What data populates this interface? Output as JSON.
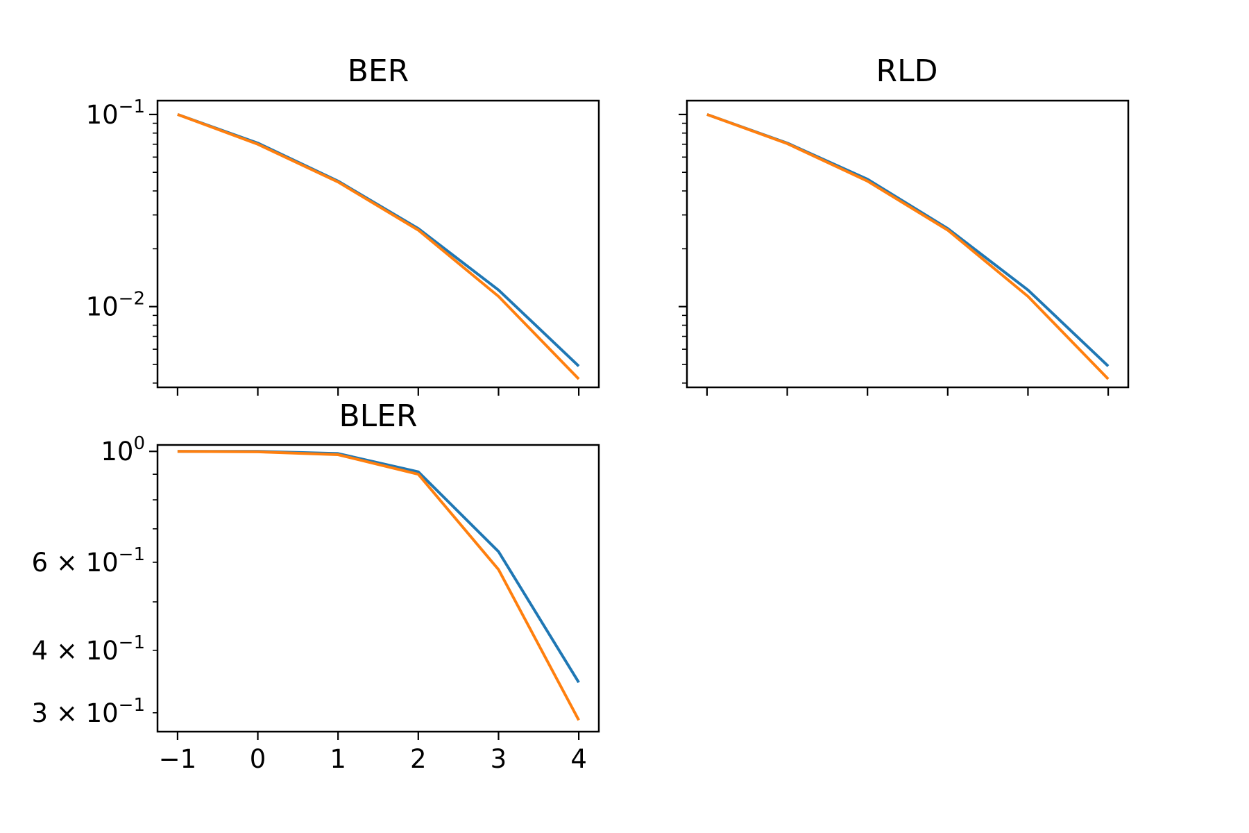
{
  "colors": {
    "series_1": "#1f77b4",
    "series_2": "#ff7f0e"
  },
  "chart_data": [
    {
      "type": "line",
      "title": "BER",
      "xlabel": "",
      "ylabel": "",
      "x": [
        -1,
        0,
        1,
        2,
        3,
        4
      ],
      "y_scale": "log",
      "ylim": [
        0.0038,
        0.118
      ],
      "xlim": [
        -1.25,
        4.25
      ],
      "y_ticks": [
        {
          "value": 0.1,
          "label": "10",
          "exp": "−1"
        },
        {
          "value": 0.01,
          "label": "10",
          "exp": "−2"
        }
      ],
      "x_tick_labels_shown": false,
      "series": [
        {
          "values": [
            0.1,
            0.071,
            0.045,
            0.0255,
            0.0122,
            0.0049
          ]
        },
        {
          "values": [
            0.1,
            0.07,
            0.0445,
            0.025,
            0.0113,
            0.0042
          ]
        }
      ]
    },
    {
      "type": "line",
      "title": "RLD",
      "xlabel": "",
      "ylabel": "",
      "x": [
        -1,
        0,
        1,
        2,
        3,
        4
      ],
      "y_scale": "log",
      "ylim": [
        0.0038,
        0.118
      ],
      "xlim": [
        -1.25,
        4.25
      ],
      "y_ticks": [],
      "x_tick_labels_shown": false,
      "series": [
        {
          "values": [
            0.1,
            0.071,
            0.046,
            0.0255,
            0.0122,
            0.0049
          ]
        },
        {
          "values": [
            0.1,
            0.0705,
            0.045,
            0.025,
            0.0113,
            0.0042
          ]
        }
      ]
    },
    {
      "type": "line",
      "title": "BLER",
      "xlabel": "",
      "ylabel": "",
      "x": [
        -1,
        0,
        1,
        2,
        3,
        4
      ],
      "x_tick_labels": [
        "−1",
        "0",
        "1",
        "2",
        "3",
        "4"
      ],
      "y_scale": "log",
      "ylim": [
        0.275,
        1.03
      ],
      "xlim": [
        -1.25,
        4.25
      ],
      "y_ticks": [
        {
          "value": 1.0,
          "label": "10",
          "exp": "0"
        },
        {
          "value": 0.6,
          "label": "6 × 10",
          "exp": "−1"
        },
        {
          "value": 0.4,
          "label": "4 × 10",
          "exp": "−1"
        },
        {
          "value": 0.3,
          "label": "3 × 10",
          "exp": "−1"
        }
      ],
      "x_tick_labels_shown": true,
      "series": [
        {
          "values": [
            1.0,
            1.0,
            0.99,
            0.91,
            0.63,
            0.345
          ]
        },
        {
          "values": [
            1.0,
            0.998,
            0.985,
            0.9,
            0.58,
            0.29
          ]
        }
      ]
    }
  ]
}
